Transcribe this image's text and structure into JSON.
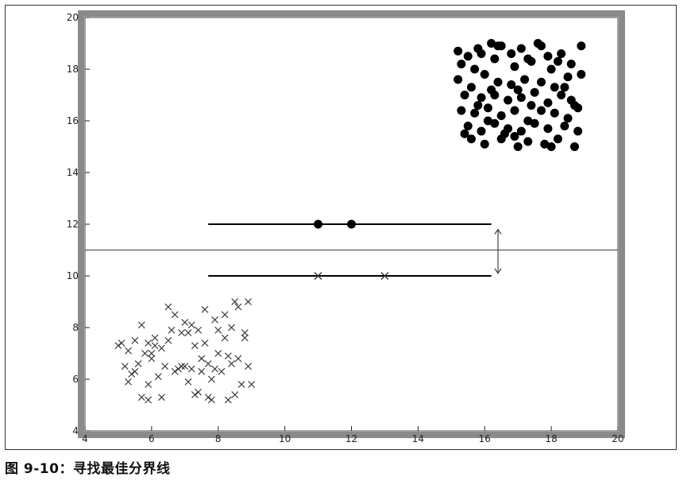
{
  "caption": "图 9-10：寻找最佳分界线",
  "chart_data": {
    "type": "scatter",
    "title": "",
    "xlabel": "",
    "ylabel": "",
    "xlim": [
      4,
      20
    ],
    "ylim": [
      4,
      20
    ],
    "xticks": [
      4,
      6,
      8,
      10,
      12,
      14,
      16,
      18,
      20
    ],
    "yticks": [
      4,
      6,
      8,
      10,
      12,
      14,
      16,
      18,
      20
    ],
    "grid": false,
    "colors": {
      "axis_frame": "#8a8a8a",
      "marker": "#000000",
      "line": "#000000",
      "separator": "#555555"
    },
    "series": [
      {
        "marker": "circle",
        "points": [
          [
            15.2,
            18.7
          ],
          [
            15.5,
            18.5
          ],
          [
            15.8,
            18.8
          ],
          [
            16.2,
            19.0
          ],
          [
            16.5,
            18.9
          ],
          [
            16.8,
            18.6
          ],
          [
            17.1,
            18.8
          ],
          [
            17.6,
            19.0
          ],
          [
            17.9,
            18.5
          ],
          [
            18.2,
            18.3
          ],
          [
            18.9,
            18.9
          ],
          [
            15.3,
            18.2
          ],
          [
            15.7,
            18.0
          ],
          [
            16.3,
            18.4
          ],
          [
            16.9,
            18.1
          ],
          [
            17.4,
            18.3
          ],
          [
            18.0,
            18.0
          ],
          [
            18.6,
            18.2
          ],
          [
            15.2,
            17.6
          ],
          [
            15.6,
            17.3
          ],
          [
            16.0,
            17.8
          ],
          [
            16.4,
            17.5
          ],
          [
            16.8,
            17.4
          ],
          [
            17.2,
            17.6
          ],
          [
            17.7,
            17.5
          ],
          [
            18.1,
            17.3
          ],
          [
            18.5,
            17.7
          ],
          [
            18.9,
            17.8
          ],
          [
            15.4,
            17.0
          ],
          [
            15.9,
            16.9
          ],
          [
            16.3,
            17.0
          ],
          [
            16.7,
            16.8
          ],
          [
            17.1,
            16.9
          ],
          [
            17.5,
            17.1
          ],
          [
            17.9,
            16.7
          ],
          [
            18.3,
            17.0
          ],
          [
            18.7,
            16.6
          ],
          [
            15.3,
            16.4
          ],
          [
            15.7,
            16.3
          ],
          [
            16.1,
            16.5
          ],
          [
            16.5,
            16.2
          ],
          [
            16.9,
            16.4
          ],
          [
            17.3,
            16.0
          ],
          [
            17.7,
            16.4
          ],
          [
            18.1,
            16.3
          ],
          [
            18.5,
            16.1
          ],
          [
            18.8,
            16.5
          ],
          [
            15.5,
            15.8
          ],
          [
            15.9,
            15.6
          ],
          [
            16.3,
            15.9
          ],
          [
            16.7,
            15.7
          ],
          [
            17.1,
            15.6
          ],
          [
            17.5,
            15.9
          ],
          [
            17.9,
            15.7
          ],
          [
            18.4,
            15.8
          ],
          [
            18.8,
            15.6
          ],
          [
            15.6,
            15.3
          ],
          [
            16.0,
            15.1
          ],
          [
            16.5,
            15.3
          ],
          [
            16.9,
            15.4
          ],
          [
            17.3,
            15.2
          ],
          [
            17.8,
            15.1
          ],
          [
            18.2,
            15.3
          ],
          [
            18.7,
            15.0
          ],
          [
            16.1,
            16.0
          ],
          [
            17.0,
            17.2
          ],
          [
            18.4,
            17.3
          ],
          [
            15.9,
            18.6
          ],
          [
            17.3,
            18.4
          ],
          [
            16.6,
            15.5
          ],
          [
            17.4,
            16.6
          ],
          [
            16.2,
            17.2
          ],
          [
            18.0,
            15.0
          ],
          [
            15.8,
            16.6
          ],
          [
            16.4,
            18.9
          ],
          [
            17.7,
            18.9
          ],
          [
            18.6,
            16.8
          ],
          [
            15.4,
            15.5
          ],
          [
            17.0,
            15.0
          ],
          [
            18.3,
            18.6
          ]
        ]
      },
      {
        "marker": "x",
        "points": [
          [
            5.1,
            7.4
          ],
          [
            5.3,
            7.1
          ],
          [
            5.5,
            7.5
          ],
          [
            5.7,
            8.1
          ],
          [
            5.9,
            7.4
          ],
          [
            6.1,
            7.6
          ],
          [
            6.5,
            8.8
          ],
          [
            6.7,
            8.5
          ],
          [
            6.9,
            7.8
          ],
          [
            7.2,
            8.1
          ],
          [
            7.4,
            7.9
          ],
          [
            7.6,
            8.7
          ],
          [
            7.9,
            8.3
          ],
          [
            8.2,
            8.5
          ],
          [
            8.5,
            9.0
          ],
          [
            8.6,
            8.8
          ],
          [
            8.9,
            9.0
          ],
          [
            5.2,
            6.5
          ],
          [
            5.4,
            6.2
          ],
          [
            5.6,
            6.6
          ],
          [
            5.8,
            7.0
          ],
          [
            6.0,
            6.8
          ],
          [
            6.3,
            7.2
          ],
          [
            6.6,
            7.9
          ],
          [
            6.8,
            6.4
          ],
          [
            7.0,
            6.5
          ],
          [
            7.3,
            7.3
          ],
          [
            7.5,
            6.8
          ],
          [
            7.7,
            6.6
          ],
          [
            8.0,
            7.0
          ],
          [
            8.3,
            6.9
          ],
          [
            8.6,
            6.8
          ],
          [
            8.8,
            7.8
          ],
          [
            5.3,
            5.9
          ],
          [
            5.5,
            6.3
          ],
          [
            5.9,
            5.8
          ],
          [
            6.2,
            6.1
          ],
          [
            6.4,
            6.5
          ],
          [
            6.7,
            6.3
          ],
          [
            6.9,
            6.5
          ],
          [
            7.2,
            6.4
          ],
          [
            7.5,
            6.3
          ],
          [
            7.8,
            6.0
          ],
          [
            8.1,
            6.3
          ],
          [
            8.4,
            6.6
          ],
          [
            8.7,
            5.8
          ],
          [
            8.9,
            6.5
          ],
          [
            5.7,
            5.3
          ],
          [
            5.9,
            5.2
          ],
          [
            6.3,
            5.3
          ],
          [
            7.1,
            5.9
          ],
          [
            7.3,
            5.4
          ],
          [
            7.4,
            5.5
          ],
          [
            7.7,
            5.3
          ],
          [
            7.8,
            5.2
          ],
          [
            8.3,
            5.2
          ],
          [
            8.5,
            5.4
          ],
          [
            9.0,
            5.8
          ],
          [
            6.1,
            7.3
          ],
          [
            7.0,
            8.2
          ],
          [
            7.6,
            7.4
          ],
          [
            8.2,
            7.6
          ],
          [
            8.8,
            7.6
          ],
          [
            6.0,
            7.0
          ],
          [
            7.1,
            7.8
          ],
          [
            8.0,
            7.9
          ],
          [
            8.4,
            8.0
          ],
          [
            6.5,
            7.5
          ],
          [
            7.9,
            6.4
          ],
          [
            5.0,
            7.3
          ]
        ]
      }
    ],
    "support_lines": [
      {
        "y": 12,
        "x1": 7.7,
        "x2": 16.2,
        "points_x": [
          11,
          12
        ],
        "marker": "circle"
      },
      {
        "y": 10,
        "x1": 7.7,
        "x2": 16.2,
        "points_x": [
          11,
          13
        ],
        "marker": "x"
      }
    ],
    "separator": {
      "y": 11
    },
    "margin_arrow": {
      "x": 16.4,
      "y1": 10.1,
      "y2": 11.8
    }
  }
}
